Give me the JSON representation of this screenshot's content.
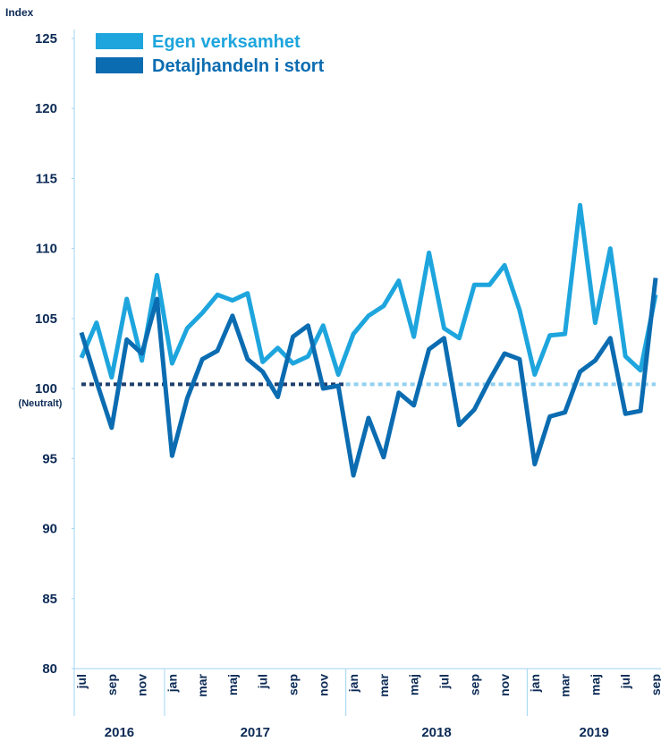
{
  "chart_data": {
    "type": "line",
    "y_axis_label": "Index",
    "neutral_label": "(Neutralt)",
    "neutral_line": 100.3,
    "categories": [
      "jul",
      null,
      "sep",
      null,
      "nov",
      null,
      "jan",
      null,
      "mar",
      null,
      "maj",
      null,
      "jul",
      null,
      "sep",
      null,
      "nov",
      null,
      "jan",
      null,
      "mar",
      null,
      "maj",
      null,
      "jul",
      null,
      "sep",
      null,
      "nov",
      null,
      "jan",
      null,
      "mar",
      null,
      "maj",
      null,
      "jul",
      null,
      "sep"
    ],
    "years": [
      "2016",
      "2017",
      "2018",
      "2019"
    ],
    "series": [
      {
        "name": "Egen verksamhet",
        "color": "#1ea5dd",
        "values": [
          102.2,
          104.7,
          100.8,
          106.4,
          102.0,
          108.1,
          101.8,
          104.3,
          105.4,
          106.7,
          106.3,
          106.8,
          101.9,
          102.9,
          101.8,
          102.3,
          104.5,
          101.0,
          103.9,
          105.2,
          105.9,
          107.7,
          103.7,
          109.7,
          104.3,
          103.6,
          107.4,
          107.4,
          108.8,
          105.6,
          101.0,
          103.8,
          103.9,
          113.1,
          104.7,
          110.0,
          102.3,
          101.3,
          106.7
        ]
      },
      {
        "name": "Detaljhandeln i stort",
        "color": "#0b6cb1",
        "values": [
          104.0,
          100.5,
          97.2,
          103.5,
          102.5,
          106.4,
          95.2,
          99.3,
          102.1,
          102.7,
          105.2,
          102.1,
          101.2,
          99.4,
          103.7,
          104.5,
          100.0,
          100.2,
          93.8,
          97.9,
          95.1,
          99.7,
          98.8,
          102.8,
          103.6,
          97.4,
          98.5,
          100.6,
          102.5,
          102.1,
          94.6,
          98.0,
          98.3,
          101.2,
          102.0,
          103.6,
          98.2,
          98.4,
          107.9
        ]
      }
    ],
    "ylim": [
      80,
      125
    ],
    "yticks": [
      80,
      85,
      90,
      95,
      {
        "value": 100,
        "label": "100"
      },
      105,
      110,
      115,
      120,
      125
    ]
  }
}
